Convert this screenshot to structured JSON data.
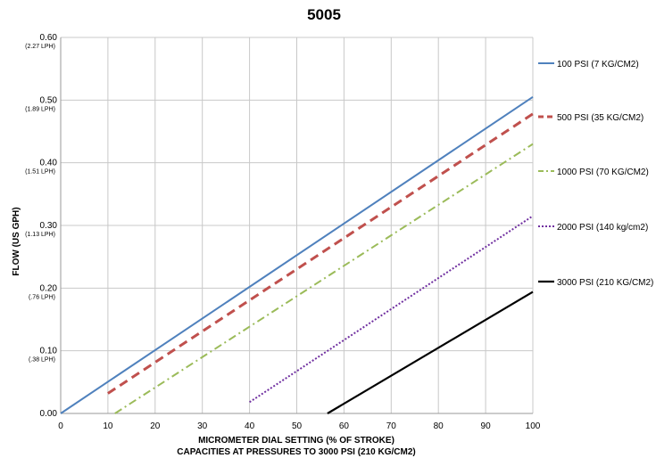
{
  "chart_data": {
    "type": "line",
    "title": "5005",
    "xlabel": "MICROMETER DIAL SETTING (% OF STROKE)",
    "xlabel2": "CAPACITIES AT PRESSURES TO 3000 PSI (210 KG/CM2)",
    "ylabel": "FLOW (US GPH)",
    "xlim": [
      0,
      100
    ],
    "ylim": [
      0,
      0.6
    ],
    "x_ticks": [
      "0",
      "10",
      "20",
      "30",
      "40",
      "50",
      "60",
      "70",
      "80",
      "90",
      "100"
    ],
    "y_ticks": [
      {
        "value": 0.0,
        "label": "0.00",
        "sub": ""
      },
      {
        "value": 0.1,
        "label": "0.10",
        "sub": "(.38 LPH)"
      },
      {
        "value": 0.2,
        "label": "0.20",
        "sub": "(.76 LPH)"
      },
      {
        "value": 0.3,
        "label": "0.30",
        "sub": "(1.13 LPH)"
      },
      {
        "value": 0.4,
        "label": "0.40",
        "sub": "(1.51 LPH)"
      },
      {
        "value": 0.5,
        "label": "0.50",
        "sub": "(1.89 LPH)"
      },
      {
        "value": 0.6,
        "label": "0.60",
        "sub": "(2.27 LPH)"
      }
    ],
    "grid": true,
    "legend_position": "right",
    "series": [
      {
        "name": "100 PSI (7 KG/CM2)",
        "color": "#4f81bd",
        "dash": "solid",
        "x": [
          0,
          100
        ],
        "y": [
          0.0,
          0.505
        ]
      },
      {
        "name": "500 PSI (35 KG/CM2)",
        "color": "#c0504d",
        "dash": "dashed",
        "x": [
          10,
          100
        ],
        "y": [
          0.032,
          0.478
        ]
      },
      {
        "name": "1000 PSI (70 KG/CM2)",
        "color": "#9bbb59",
        "dash": "dashdot",
        "x": [
          11.5,
          100
        ],
        "y": [
          0.0,
          0.43
        ]
      },
      {
        "name": "2000 PSI (140 kg/cm2)",
        "color": "#7030a0",
        "dash": "dotted",
        "x": [
          40,
          100
        ],
        "y": [
          0.018,
          0.315
        ]
      },
      {
        "name": "3000 PSI (210 KG/CM2)",
        "color": "#000000",
        "dash": "solid",
        "x": [
          56.5,
          100
        ],
        "y": [
          0.0,
          0.194
        ]
      }
    ]
  }
}
